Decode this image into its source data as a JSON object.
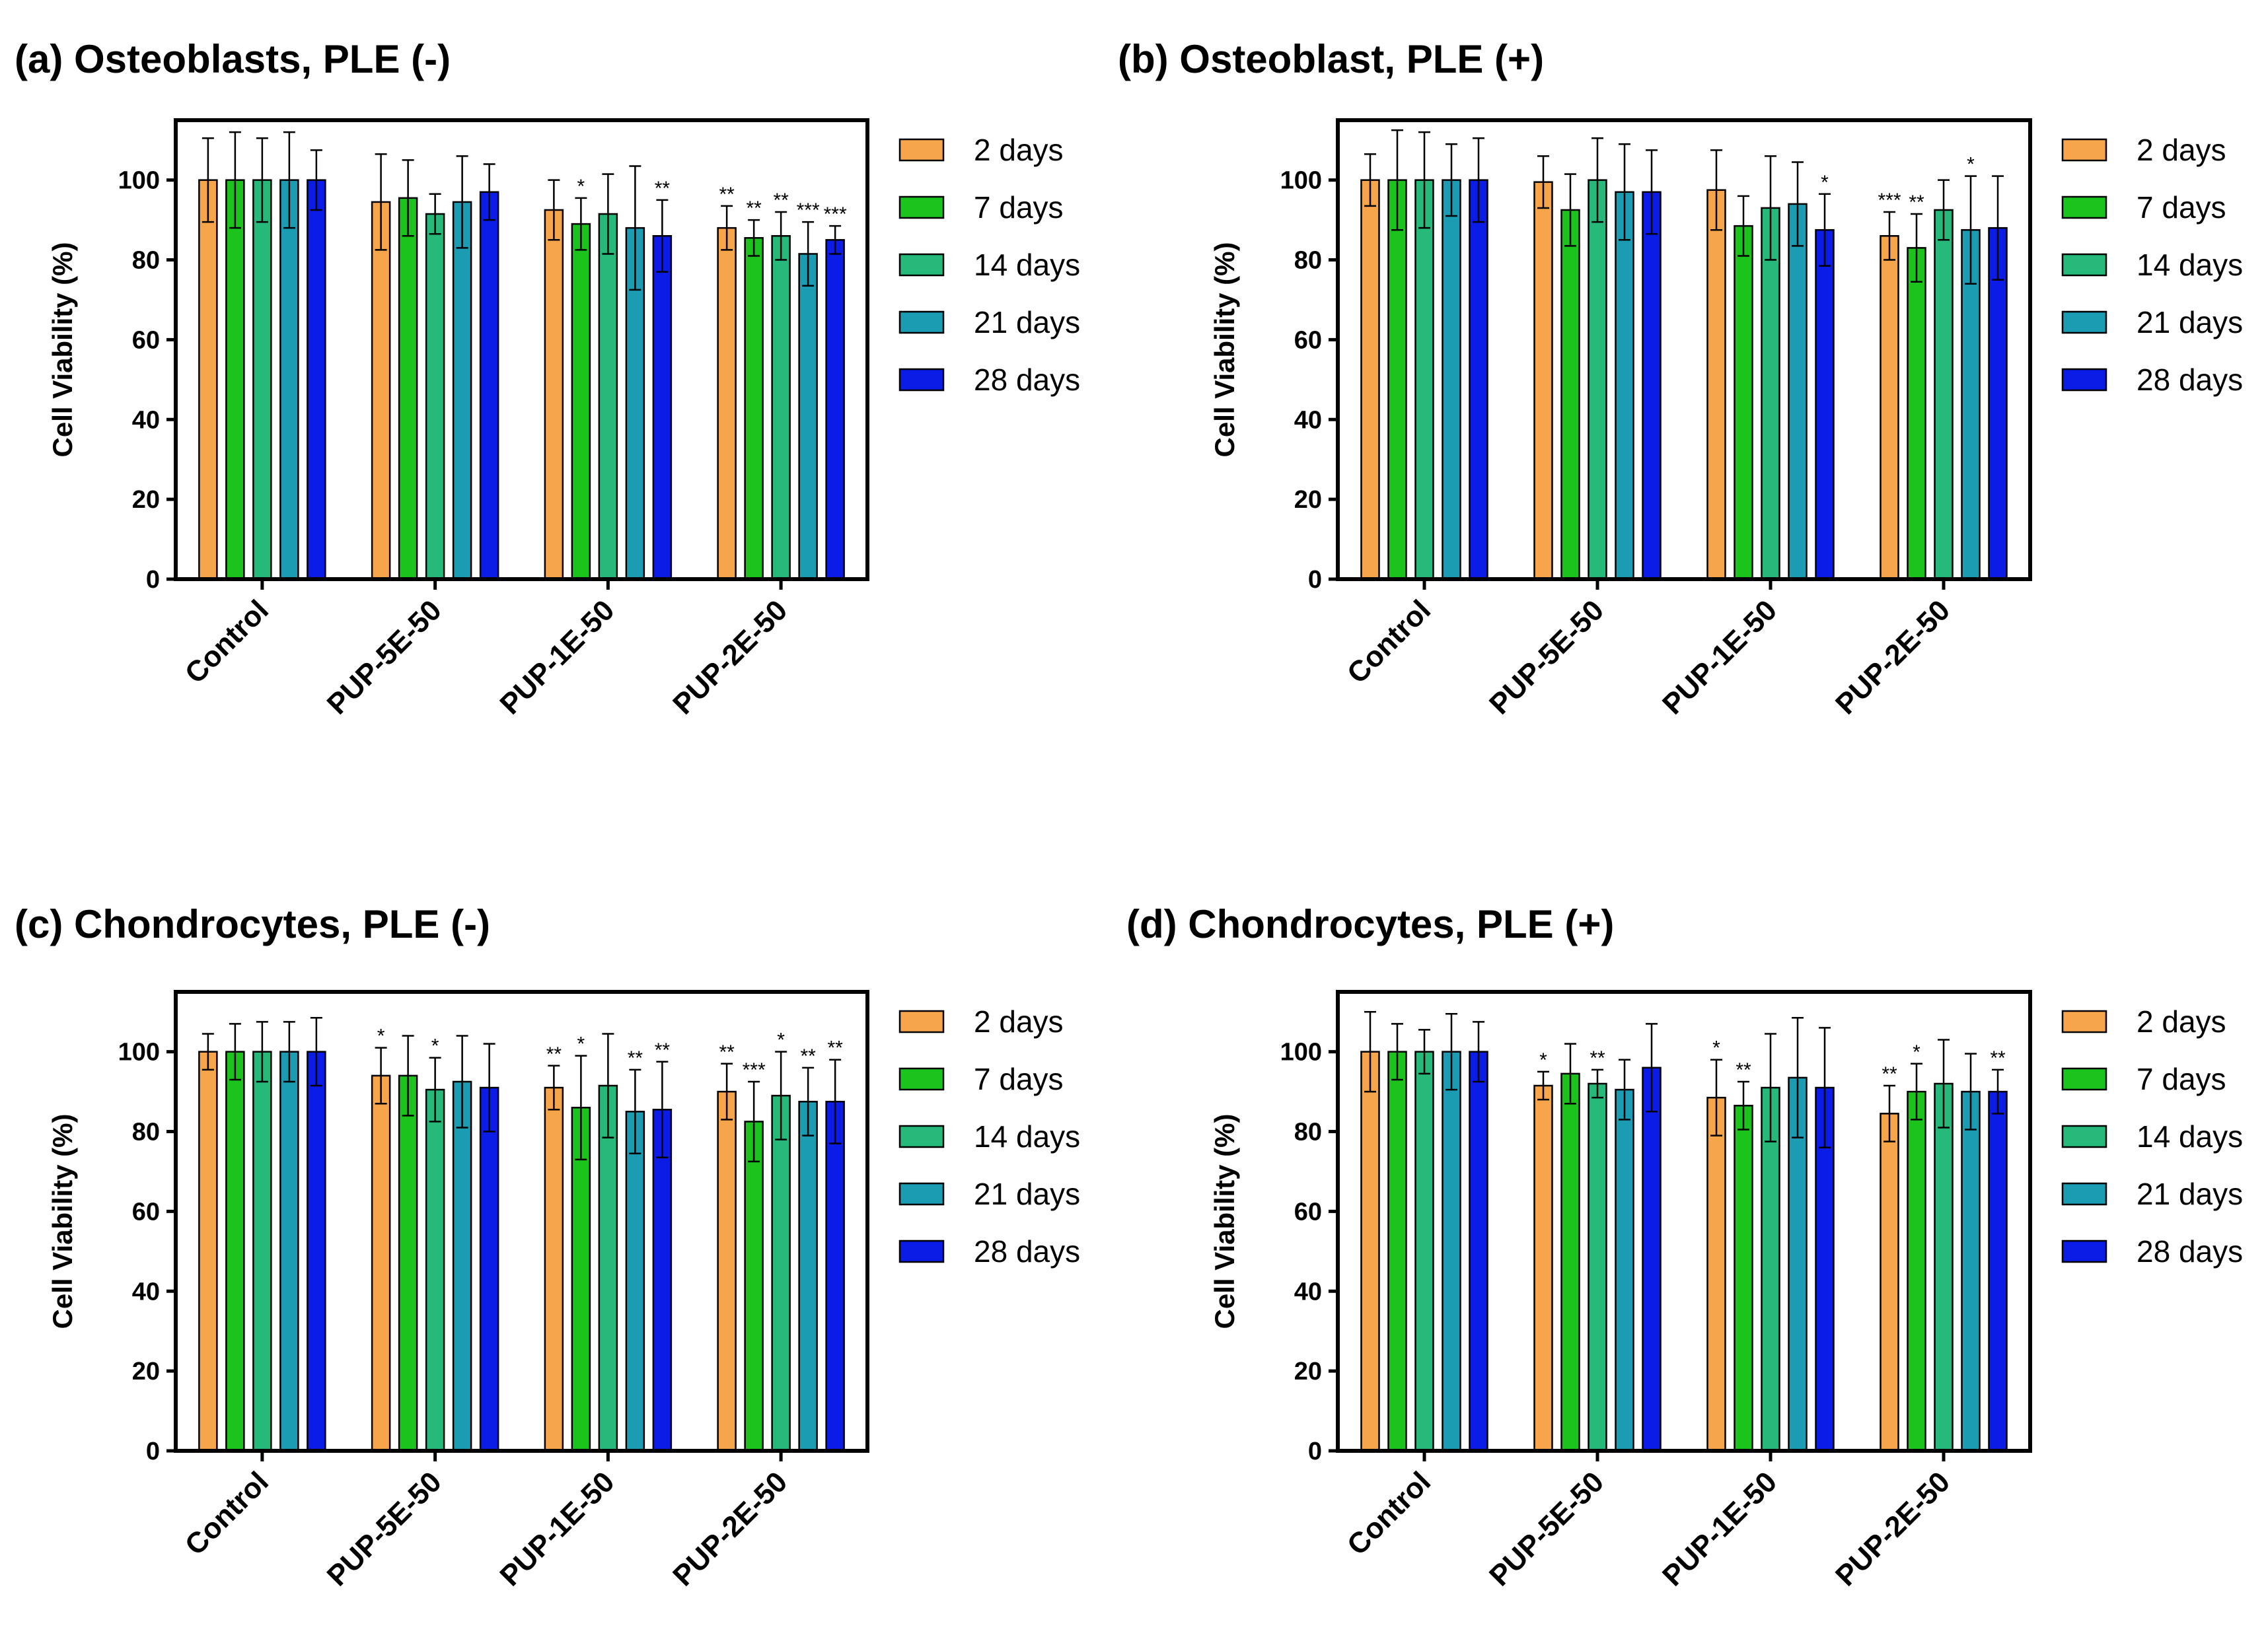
{
  "legend": [
    "2 days",
    "7 days",
    "14 days",
    "21 days",
    "28 days"
  ],
  "colors": [
    "#F7A54A",
    "#1DC31D",
    "#26B97A",
    "#1B9CB3",
    "#0A1CE6"
  ],
  "chart_data": [
    {
      "type": "bar",
      "title": "(a) Osteoblasts, PLE (-)",
      "ylabel": "Cell Viability (%)",
      "ylim": [
        0,
        115
      ],
      "yticks": [
        "0",
        "20",
        "40",
        "60",
        "80",
        "100"
      ],
      "categories": [
        "Control",
        "PUP-5E-50",
        "PUP-1E-50",
        "PUP-2E-50"
      ],
      "series": [
        {
          "name": "2 days",
          "values": [
            100,
            94.5,
            92.5,
            88
          ],
          "errors": [
            10.5,
            12,
            7.5,
            5.5
          ],
          "sig": [
            "",
            "",
            "",
            "**"
          ]
        },
        {
          "name": "7 days",
          "values": [
            100,
            95.5,
            89,
            85.5
          ],
          "errors": [
            12,
            9.5,
            6.5,
            4.5
          ],
          "sig": [
            "",
            "",
            "*",
            "**"
          ]
        },
        {
          "name": "14 days",
          "values": [
            100,
            91.5,
            91.5,
            86
          ],
          "errors": [
            10.5,
            5,
            10,
            6
          ],
          "sig": [
            "",
            "",
            "",
            "**"
          ]
        },
        {
          "name": "21 days",
          "values": [
            100,
            94.5,
            88,
            81.5
          ],
          "errors": [
            12,
            11.5,
            15.5,
            8
          ],
          "sig": [
            "",
            "",
            "",
            "***"
          ]
        },
        {
          "name": "28 days",
          "values": [
            100,
            97,
            86,
            85
          ],
          "errors": [
            7.5,
            7,
            9,
            3.5
          ],
          "sig": [
            "",
            "",
            "**",
            "***"
          ]
        }
      ]
    },
    {
      "type": "bar",
      "title": "(b) Osteoblast,  PLE (+)",
      "ylabel": "Cell Viability (%)",
      "ylim": [
        0,
        115
      ],
      "yticks": [
        "0",
        "20",
        "40",
        "60",
        "80",
        "100"
      ],
      "categories": [
        "Control",
        "PUP-5E-50",
        "PUP-1E-50",
        "PUP-2E-50"
      ],
      "series": [
        {
          "name": "2 days",
          "values": [
            100,
            99.5,
            97.5,
            86
          ],
          "errors": [
            6.5,
            6.5,
            10,
            6
          ],
          "sig": [
            "",
            "",
            "",
            "***"
          ]
        },
        {
          "name": "7 days",
          "values": [
            100,
            92.5,
            88.5,
            83
          ],
          "errors": [
            12.5,
            9,
            7.5,
            8.5
          ],
          "sig": [
            "",
            "",
            "",
            "**"
          ]
        },
        {
          "name": "14 days",
          "values": [
            100,
            100,
            93,
            92.5
          ],
          "errors": [
            12,
            10.5,
            13,
            7.5
          ],
          "sig": [
            "",
            "",
            "",
            ""
          ]
        },
        {
          "name": "21 days",
          "values": [
            100,
            97,
            94,
            87.5
          ],
          "errors": [
            9,
            12,
            10.5,
            13.5
          ],
          "sig": [
            "",
            "",
            "",
            "*"
          ]
        },
        {
          "name": "28 days",
          "values": [
            100,
            97,
            87.5,
            88
          ],
          "errors": [
            10.5,
            10.5,
            9,
            13
          ],
          "sig": [
            "",
            "",
            "*",
            ""
          ]
        }
      ]
    },
    {
      "type": "bar",
      "title": "(c) Chondrocytes, PLE (-)",
      "ylabel": "Cell Viability (%)",
      "ylim": [
        0,
        115
      ],
      "yticks": [
        "0",
        "20",
        "40",
        "60",
        "80",
        "100"
      ],
      "categories": [
        "Control",
        "PUP-5E-50",
        "PUP-1E-50",
        "PUP-2E-50"
      ],
      "series": [
        {
          "name": "2 days",
          "values": [
            100,
            94,
            91,
            90
          ],
          "errors": [
            4.5,
            7,
            5.5,
            7
          ],
          "sig": [
            "",
            "*",
            "**",
            "**"
          ]
        },
        {
          "name": "7 days",
          "values": [
            100,
            94,
            86,
            82.5
          ],
          "errors": [
            7,
            10,
            13,
            10
          ],
          "sig": [
            "",
            "",
            "*",
            "***"
          ]
        },
        {
          "name": "14 days",
          "values": [
            100,
            90.5,
            91.5,
            89
          ],
          "errors": [
            7.5,
            8,
            13,
            11
          ],
          "sig": [
            "",
            "*",
            "",
            "*"
          ]
        },
        {
          "name": "21 days",
          "values": [
            100,
            92.5,
            85,
            87.5
          ],
          "errors": [
            7.5,
            11.5,
            10.5,
            8.5
          ],
          "sig": [
            "",
            "",
            "**",
            "**"
          ]
        },
        {
          "name": "28 days",
          "values": [
            100,
            91,
            85.5,
            87.5
          ],
          "errors": [
            8.5,
            11,
            12,
            10.5
          ],
          "sig": [
            "",
            "",
            "**",
            "**"
          ]
        }
      ]
    },
    {
      "type": "bar",
      "title": "(d) Chondrocytes,  PLE (+)",
      "ylabel": "Cell Viability (%)",
      "ylim": [
        0,
        115
      ],
      "yticks": [
        "0",
        "20",
        "40",
        "60",
        "80",
        "100"
      ],
      "categories": [
        "Control",
        "PUP-5E-50",
        "PUP-1E-50",
        "PUP-2E-50"
      ],
      "series": [
        {
          "name": "2 days",
          "values": [
            100,
            91.5,
            88.5,
            84.5
          ],
          "errors": [
            10,
            3.5,
            9.5,
            7
          ],
          "sig": [
            "",
            "*",
            "*",
            "**"
          ]
        },
        {
          "name": "7 days",
          "values": [
            100,
            94.5,
            86.5,
            90
          ],
          "errors": [
            7,
            7.5,
            6,
            7
          ],
          "sig": [
            "",
            "",
            "**",
            "*"
          ]
        },
        {
          "name": "14 days",
          "values": [
            100,
            92,
            91,
            92
          ],
          "errors": [
            5.5,
            3.5,
            13.5,
            11
          ],
          "sig": [
            "",
            "**",
            "",
            ""
          ]
        },
        {
          "name": "21 days",
          "values": [
            100,
            90.5,
            93.5,
            90
          ],
          "errors": [
            9.5,
            7.5,
            15,
            9.5
          ],
          "sig": [
            "",
            "",
            "",
            ""
          ]
        },
        {
          "name": "28 days",
          "values": [
            100,
            96,
            91,
            90
          ],
          "errors": [
            7.5,
            11,
            15,
            5.5
          ],
          "sig": [
            "",
            "",
            "",
            "**"
          ]
        }
      ]
    }
  ]
}
